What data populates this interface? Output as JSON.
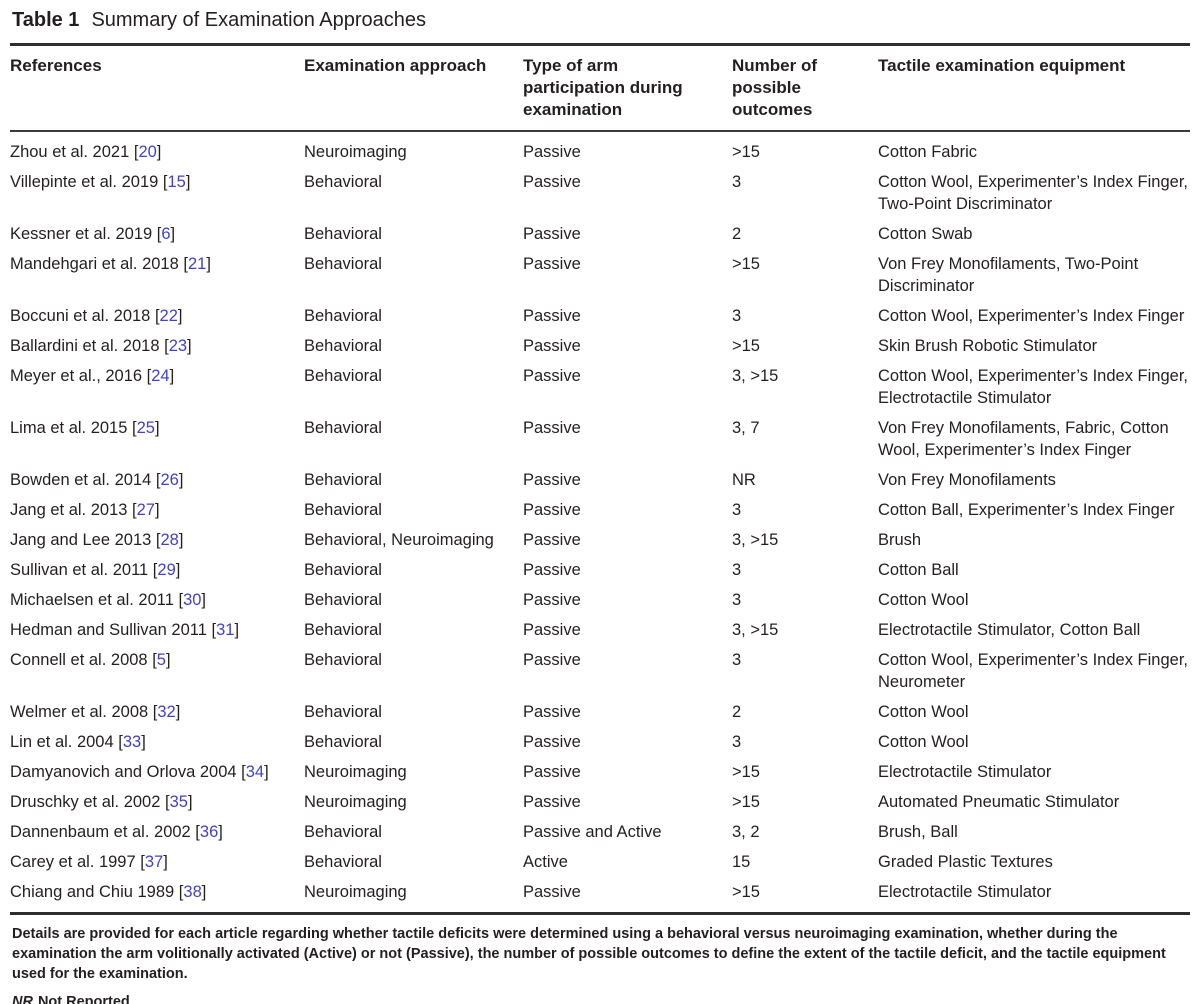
{
  "colors": {
    "text": "#231f20",
    "citation_link": "#4141c8",
    "rule": "#2e2e2e",
    "background": "#ffffff"
  },
  "table": {
    "caption_label": "Table 1",
    "caption_title": "Summary of Examination Approaches",
    "columns": [
      "References",
      "Examination approach",
      "Type of arm participation during examination",
      "Number of possible outcomes",
      "Tactile examination equipment"
    ],
    "rows": [
      {
        "reference": "Zhou et al. 2021",
        "citation": "20",
        "approach": "Neuroimaging",
        "participation": "Passive",
        "outcomes": ">15",
        "equipment": "Cotton Fabric"
      },
      {
        "reference": "Villepinte et al. 2019",
        "citation": "15",
        "approach": "Behavioral",
        "participation": "Passive",
        "outcomes": "3",
        "equipment": "Cotton Wool, Experimenter’s Index Finger, Two-Point Discriminator"
      },
      {
        "reference": "Kessner et al. 2019",
        "citation": "6",
        "approach": "Behavioral",
        "participation": "Passive",
        "outcomes": "2",
        "equipment": "Cotton Swab"
      },
      {
        "reference": "Mandehgari et al. 2018",
        "citation": "21",
        "approach": "Behavioral",
        "participation": "Passive",
        "outcomes": ">15",
        "equipment": "Von Frey Monofilaments, Two-Point Discriminator"
      },
      {
        "reference": "Boccuni et al. 2018",
        "citation": "22",
        "approach": "Behavioral",
        "participation": "Passive",
        "outcomes": "3",
        "equipment": "Cotton Wool, Experimenter’s Index Finger"
      },
      {
        "reference": "Ballardini et al. 2018",
        "citation": "23",
        "approach": "Behavioral",
        "participation": "Passive",
        "outcomes": ">15",
        "equipment": "Skin Brush Robotic Stimulator"
      },
      {
        "reference": "Meyer et al., 2016",
        "citation": "24",
        "approach": "Behavioral",
        "participation": "Passive",
        "outcomes": "3, >15",
        "equipment": "Cotton Wool, Experimenter’s Index Finger, Electrotactile Stimulator"
      },
      {
        "reference": "Lima et al. 2015",
        "citation": "25",
        "approach": "Behavioral",
        "participation": "Passive",
        "outcomes": "3, 7",
        "equipment": "Von Frey Monofilaments, Fabric, Cotton Wool, Experimenter’s Index Finger"
      },
      {
        "reference": "Bowden et al. 2014",
        "citation": "26",
        "approach": "Behavioral",
        "participation": "Passive",
        "outcomes": "NR",
        "equipment": "Von Frey Monofilaments"
      },
      {
        "reference": "Jang et al. 2013",
        "citation": "27",
        "approach": "Behavioral",
        "participation": "Passive",
        "outcomes": "3",
        "equipment": "Cotton Ball, Experimenter’s Index Finger"
      },
      {
        "reference": "Jang and Lee 2013",
        "citation": "28",
        "approach": "Behavioral, Neuroimaging",
        "participation": "Passive",
        "outcomes": "3, >15",
        "equipment": "Brush"
      },
      {
        "reference": "Sullivan et al. 2011",
        "citation": "29",
        "approach": "Behavioral",
        "participation": "Passive",
        "outcomes": "3",
        "equipment": "Cotton Ball"
      },
      {
        "reference": "Michaelsen et al. 2011",
        "citation": "30",
        "approach": "Behavioral",
        "participation": "Passive",
        "outcomes": "3",
        "equipment": "Cotton Wool"
      },
      {
        "reference": "Hedman and Sullivan 2011",
        "citation": "31",
        "approach": "Behavioral",
        "participation": "Passive",
        "outcomes": "3, >15",
        "equipment": "Electrotactile Stimulator, Cotton Ball"
      },
      {
        "reference": "Connell et al. 2008",
        "citation": "5",
        "approach": "Behavioral",
        "participation": "Passive",
        "outcomes": "3",
        "equipment": "Cotton Wool, Experimenter’s Index Finger, Neurometer"
      },
      {
        "reference": "Welmer et al. 2008",
        "citation": "32",
        "approach": "Behavioral",
        "participation": "Passive",
        "outcomes": "2",
        "equipment": "Cotton Wool"
      },
      {
        "reference": "Lin et al. 2004",
        "citation": "33",
        "approach": "Behavioral",
        "participation": "Passive",
        "outcomes": "3",
        "equipment": "Cotton Wool"
      },
      {
        "reference": "Damyanovich and Orlova 2004",
        "citation": "34",
        "approach": "Neuroimaging",
        "participation": "Passive",
        "outcomes": ">15",
        "equipment": "Electrotactile Stimulator"
      },
      {
        "reference": "Druschky et al. 2002",
        "citation": "35",
        "approach": "Neuroimaging",
        "participation": "Passive",
        "outcomes": ">15",
        "equipment": "Automated Pneumatic Stimulator"
      },
      {
        "reference": "Dannenbaum et al. 2002",
        "citation": "36",
        "approach": "Behavioral",
        "participation": "Passive and Active",
        "outcomes": "3, 2",
        "equipment": "Brush, Ball"
      },
      {
        "reference": "Carey et al. 1997",
        "citation": "37",
        "approach": "Behavioral",
        "participation": "Active",
        "outcomes": "15",
        "equipment": "Graded Plastic Textures"
      },
      {
        "reference": "Chiang and Chiu 1989",
        "citation": "38",
        "approach": "Neuroimaging",
        "participation": "Passive",
        "outcomes": ">15",
        "equipment": "Electrotactile Stimulator"
      }
    ]
  },
  "footnote": "Details are provided for each article regarding whether tactile deficits were determined using a behavioral versus neuroimaging examination, whether during the examination the arm volitionally activated (Active) or not (Passive), the number of possible outcomes to define the extent of the tactile deficit, and the tactile equipment used for the examination.",
  "abbreviation": {
    "term": "NR",
    "definition": "Not Reported"
  }
}
